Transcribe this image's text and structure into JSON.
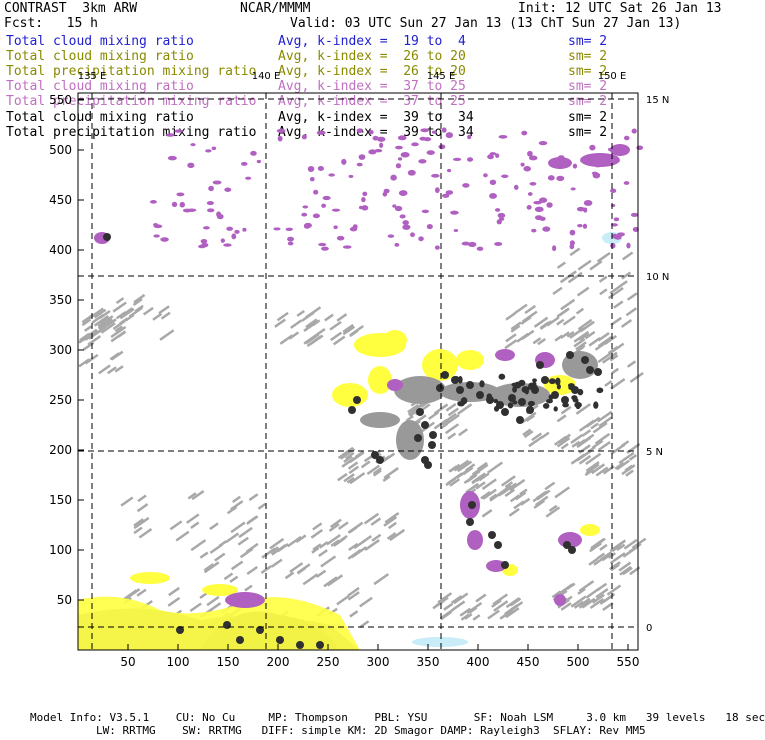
{
  "header": {
    "title": "CONTRAST  3km ARW",
    "org": "NCAR/MMMM",
    "init": "Init: 12 UTC Sat 26 Jan 13",
    "fcst": "Fcst:   15 h",
    "valid": "Valid: 03 UTC Sun 27 Jan 13 (13 ChT Sun 27 Jan 13)"
  },
  "legend": [
    {
      "label": "Total cloud mixing ratio",
      "avg": "Avg, k-index =  19 to  4",
      "sm": "sm= 2",
      "color": "#2020d0"
    },
    {
      "label": "Total cloud mixing ratio",
      "avg": "Avg, k-index =  26 to 20",
      "sm": "sm= 2",
      "color": "#8a8a00"
    },
    {
      "label": "Total precipitation mixing ratio",
      "avg": "Avg, k-index =  26 to 20",
      "sm": "sm= 2",
      "color": "#8a8a00"
    },
    {
      "label": "Total cloud mixing ratio",
      "avg": "Avg, k-index =  37 to 25",
      "sm": "sm= 2",
      "color": "#c070c0"
    },
    {
      "label": "Total precipitation mixing ratio",
      "avg": "Avg, k-index =  37 to 25",
      "sm": "sm= 2",
      "color": "#c070c0"
    },
    {
      "label": "Total cloud mixing ratio",
      "avg": "Avg, k-index =  39 to  34",
      "sm": "sm= 2",
      "color": "#000000"
    },
    {
      "label": "Total precipitation mixing ratio",
      "avg": "Avg, k-index =  39 to  34",
      "sm": "sm= 2",
      "color": "#000000"
    }
  ],
  "axes": {
    "x_ticks": [
      "50",
      "100",
      "150",
      "200",
      "250",
      "300",
      "350",
      "400",
      "450",
      "500",
      "550"
    ],
    "y_ticks": [
      "50",
      "100",
      "150",
      "200",
      "250",
      "300",
      "350",
      "400",
      "450",
      "500",
      "550"
    ],
    "lon_labels": [
      "135 E",
      "140 E",
      "145 E",
      "150 E"
    ],
    "lat_labels": [
      "15 N",
      "10 N",
      "5 N",
      "0"
    ]
  },
  "footer": {
    "line1": "Model Info: V3.5.1    CU: No Cu     MP: Thompson    PBL: YSU       SF: Noah LSM     3.0 km   39 levels   18 sec",
    "line2": "LW: RRTMG    SW: RRTMG   DIFF: simple KM: 2D Smagor DAMP: Rayleigh3  SFLAY: Rev MM5"
  },
  "colors": {
    "gray": "#a8a8a8",
    "yellow": "#ffff40",
    "purple": "#b060c0",
    "black": "#303030",
    "light_blue": "#c8ecf8"
  }
}
